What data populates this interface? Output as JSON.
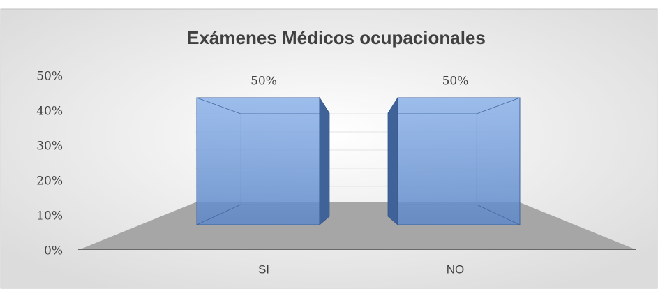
{
  "chart_data": {
    "type": "bar3d",
    "title": "Exámenes Médicos ocupacionales",
    "categories": [
      "SI",
      "NO"
    ],
    "values": [
      50,
      50
    ],
    "value_labels": [
      "50%",
      "50%"
    ],
    "color": "#6f9ad8",
    "ylim": [
      0,
      50
    ],
    "yticks": [
      {
        "value": 0,
        "label": "0%"
      },
      {
        "value": 10,
        "label": "10%"
      },
      {
        "value": 20,
        "label": "20%"
      },
      {
        "value": 30,
        "label": "30%"
      },
      {
        "value": 40,
        "label": "40%"
      },
      {
        "value": 50,
        "label": "50%"
      }
    ],
    "grid": true
  }
}
